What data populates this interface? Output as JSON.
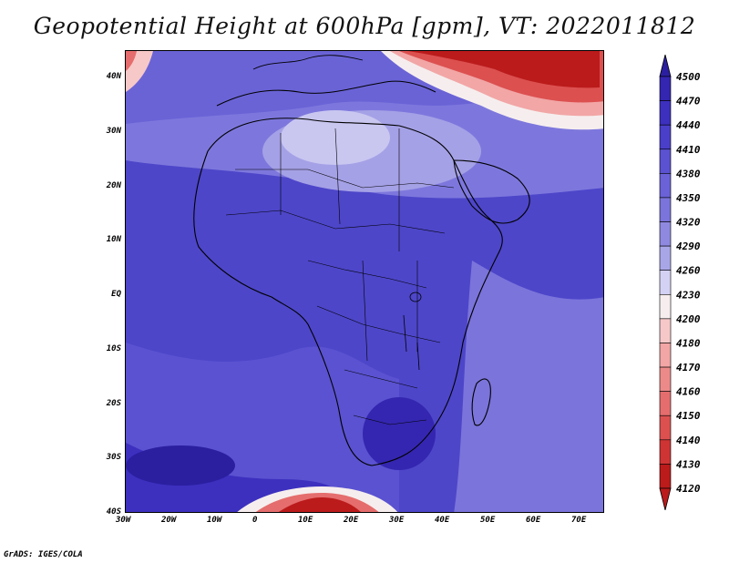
{
  "title": "Geopotential Height at 600hPa [gpm], VT: 2022011812",
  "lat_labels": [
    "40N",
    "30N",
    "20N",
    "10N",
    "EQ",
    "10S",
    "20S",
    "30S",
    "40S"
  ],
  "lon_labels": [
    "30W",
    "20W",
    "10W",
    "0",
    "10E",
    "20E",
    "30E",
    "40E",
    "50E",
    "60E",
    "70E"
  ],
  "colorbar": {
    "levels": [
      "4500",
      "4470",
      "4440",
      "4410",
      "4380",
      "4350",
      "4320",
      "4290",
      "4260",
      "4230",
      "4200",
      "4180",
      "4170",
      "4160",
      "4150",
      "4140",
      "4130",
      "4120"
    ],
    "colors": [
      "#2b1fa0",
      "#3426b0",
      "#3d30bf",
      "#4a3fc9",
      "#5a52d0",
      "#6a62d6",
      "#7b74db",
      "#8f8ae0",
      "#a9a6e8",
      "#d4d2f4",
      "#f6eeee",
      "#f6c8c8",
      "#f2a6a6",
      "#ec8a8a",
      "#e56d6d",
      "#dc5050",
      "#cf3434",
      "#bb1b1b"
    ]
  },
  "footer": "GrADS: IGES/COLA"
}
